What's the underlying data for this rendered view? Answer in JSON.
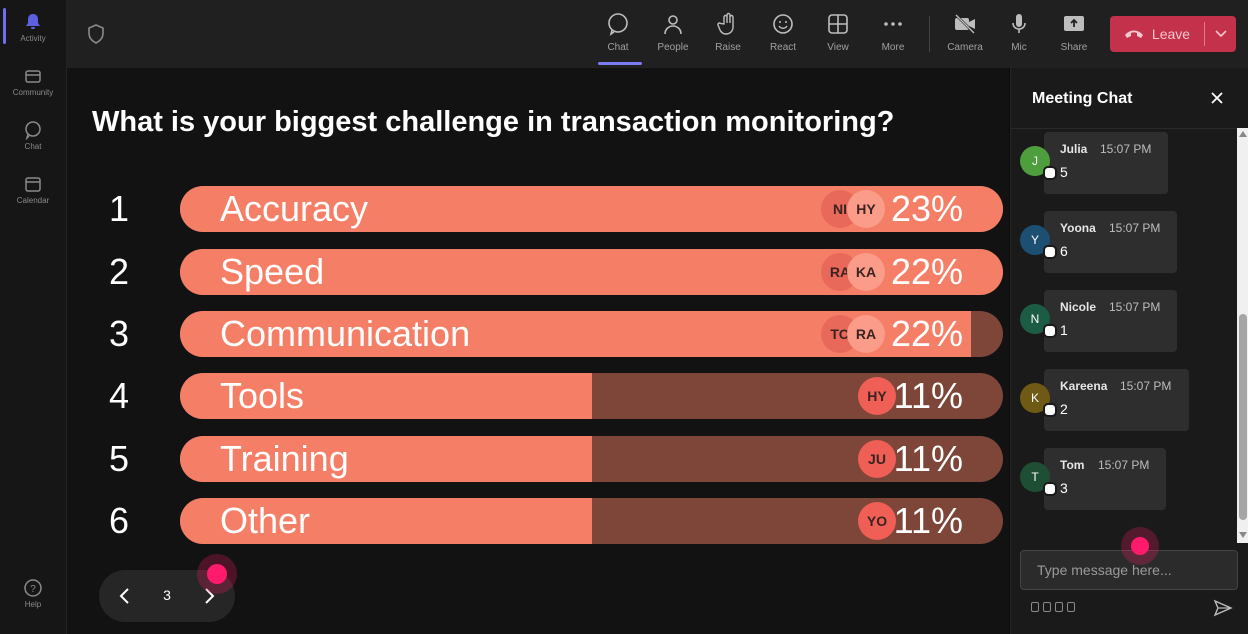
{
  "rail": {
    "items": [
      {
        "label": "Activity",
        "icon": "bell-icon"
      },
      {
        "label": "Community",
        "icon": "community-icon"
      },
      {
        "label": "Chat",
        "icon": "chat-icon"
      },
      {
        "label": "Calendar",
        "icon": "calendar-icon"
      },
      {
        "label": "Help",
        "icon": "help-icon"
      }
    ]
  },
  "toolbar": {
    "buttons": [
      {
        "label": "Chat",
        "icon": "chat-icon",
        "active": true
      },
      {
        "label": "People",
        "icon": "people-icon"
      },
      {
        "label": "Raise",
        "icon": "raise-hand-icon"
      },
      {
        "label": "React",
        "icon": "react-icon"
      },
      {
        "label": "View",
        "icon": "view-icon"
      },
      {
        "label": "More",
        "icon": "more-icon"
      },
      {
        "label": "Camera",
        "icon": "camera-off-icon"
      },
      {
        "label": "Mic",
        "icon": "mic-icon"
      },
      {
        "label": "Share",
        "icon": "share-icon"
      }
    ],
    "leave_label": "Leave"
  },
  "poll": {
    "question": "What is your biggest challenge in transaction monitoring?",
    "options": [
      {
        "num": "1",
        "label": "Accuracy",
        "percent_text": "23%",
        "fill_fraction": 1.0,
        "avatars": [
          "NI",
          "HY"
        ]
      },
      {
        "num": "2",
        "label": "Speed",
        "percent_text": "22%",
        "fill_fraction": 1.0,
        "avatars": [
          "RA",
          "KA"
        ]
      },
      {
        "num": "3",
        "label": "Communication",
        "percent_text": "22%",
        "fill_fraction": 0.961,
        "avatars": [
          "TO",
          "RA"
        ]
      },
      {
        "num": "4",
        "label": "Tools",
        "percent_text": "11%",
        "fill_fraction": 0.5,
        "avatars": [
          "HY"
        ]
      },
      {
        "num": "5",
        "label": "Training",
        "percent_text": "11%",
        "fill_fraction": 0.5,
        "avatars": [
          "JU"
        ]
      },
      {
        "num": "6",
        "label": "Other",
        "percent_text": "11%",
        "fill_fraction": 0.5,
        "avatars": [
          "YO"
        ]
      }
    ],
    "page": "3"
  },
  "chat": {
    "title": "Meeting Chat",
    "placeholder": "Type message here...",
    "messages": [
      {
        "initial": "J",
        "name": "Julia",
        "time": "15:07 PM",
        "text": "5",
        "avatar_color": "#4e9e3d"
      },
      {
        "initial": "Y",
        "name": "Yoona",
        "time": "15:07 PM",
        "text": "6",
        "avatar_color": "#1d4f73"
      },
      {
        "initial": "N",
        "name": "Nicole",
        "time": "15:07 PM",
        "text": "1",
        "avatar_color": "#1d5c44"
      },
      {
        "initial": "K",
        "name": "Kareena",
        "time": "15:07 PM",
        "text": "2",
        "avatar_color": "#6e5a14"
      },
      {
        "initial": "T",
        "name": "Tom",
        "time": "15:07 PM",
        "text": "3",
        "avatar_color": "#1e4f35"
      }
    ]
  },
  "colors": {
    "bar_fill": "#f47f66",
    "bar_track": "#7d4638",
    "leave": "#c4314b",
    "accent": "#7a7cf0"
  }
}
